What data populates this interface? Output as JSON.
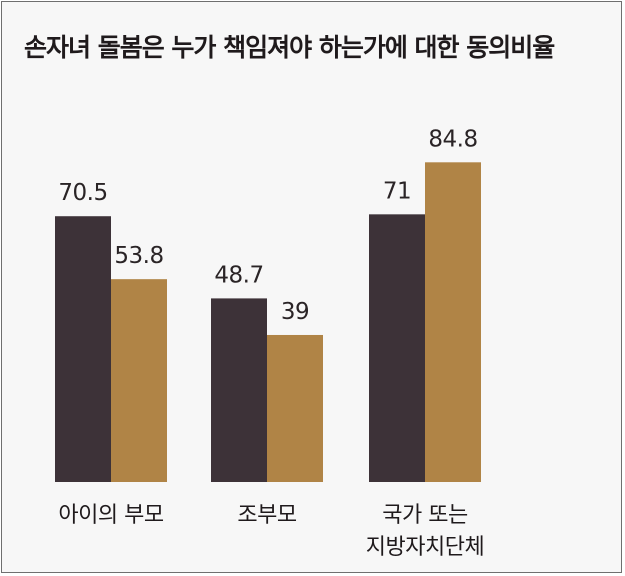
{
  "chart_data": {
    "type": "bar",
    "title": "손자녀 돌봄은 누가 책임져야 하는가에 대한 동의비율",
    "categories": [
      [
        "아이의 부모"
      ],
      [
        "조부모"
      ],
      [
        "국가 또는",
        "지방자치단체"
      ]
    ],
    "series": [
      {
        "values": [
          70.5,
          48.7,
          71
        ],
        "labels": [
          "70.5",
          "48.7",
          "71"
        ],
        "color": "#3d3238"
      },
      {
        "values": [
          53.8,
          39,
          84.8
        ],
        "labels": [
          "53.8",
          "39",
          "84.8"
        ],
        "color": "#b08446"
      }
    ],
    "ylim": [
      0,
      100
    ],
    "grid": false,
    "legend": "none"
  }
}
